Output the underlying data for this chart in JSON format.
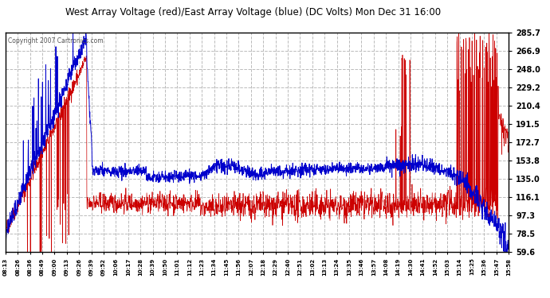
{
  "title": "West Array Voltage (red)/East Array Voltage (blue) (DC Volts) Mon Dec 31 16:00",
  "copyright": "Copyright 2007 Cartronics.com",
  "bg_color": "#ffffff",
  "plot_bg_color": "#ffffff",
  "grid_color": "#bbbbbb",
  "title_color": "#000000",
  "red_color": "#cc0000",
  "blue_color": "#0000cc",
  "yticks": [
    59.6,
    78.5,
    97.3,
    116.1,
    135.0,
    153.8,
    172.7,
    191.5,
    210.4,
    229.2,
    248.0,
    266.9,
    285.7
  ],
  "ymin": 59.6,
  "ymax": 285.7,
  "xtick_labels": [
    "08:13",
    "08:26",
    "08:36",
    "08:49",
    "09:00",
    "09:13",
    "09:26",
    "09:39",
    "09:52",
    "10:06",
    "10:17",
    "10:28",
    "10:39",
    "10:50",
    "11:01",
    "11:12",
    "11:23",
    "11:34",
    "11:45",
    "11:56",
    "12:07",
    "12:18",
    "12:29",
    "12:40",
    "12:51",
    "13:02",
    "13:13",
    "13:24",
    "13:35",
    "13:46",
    "13:57",
    "14:08",
    "14:19",
    "14:30",
    "14:41",
    "14:52",
    "15:03",
    "15:14",
    "15:25",
    "15:36",
    "15:47",
    "15:58"
  ],
  "border_color": "#000000"
}
